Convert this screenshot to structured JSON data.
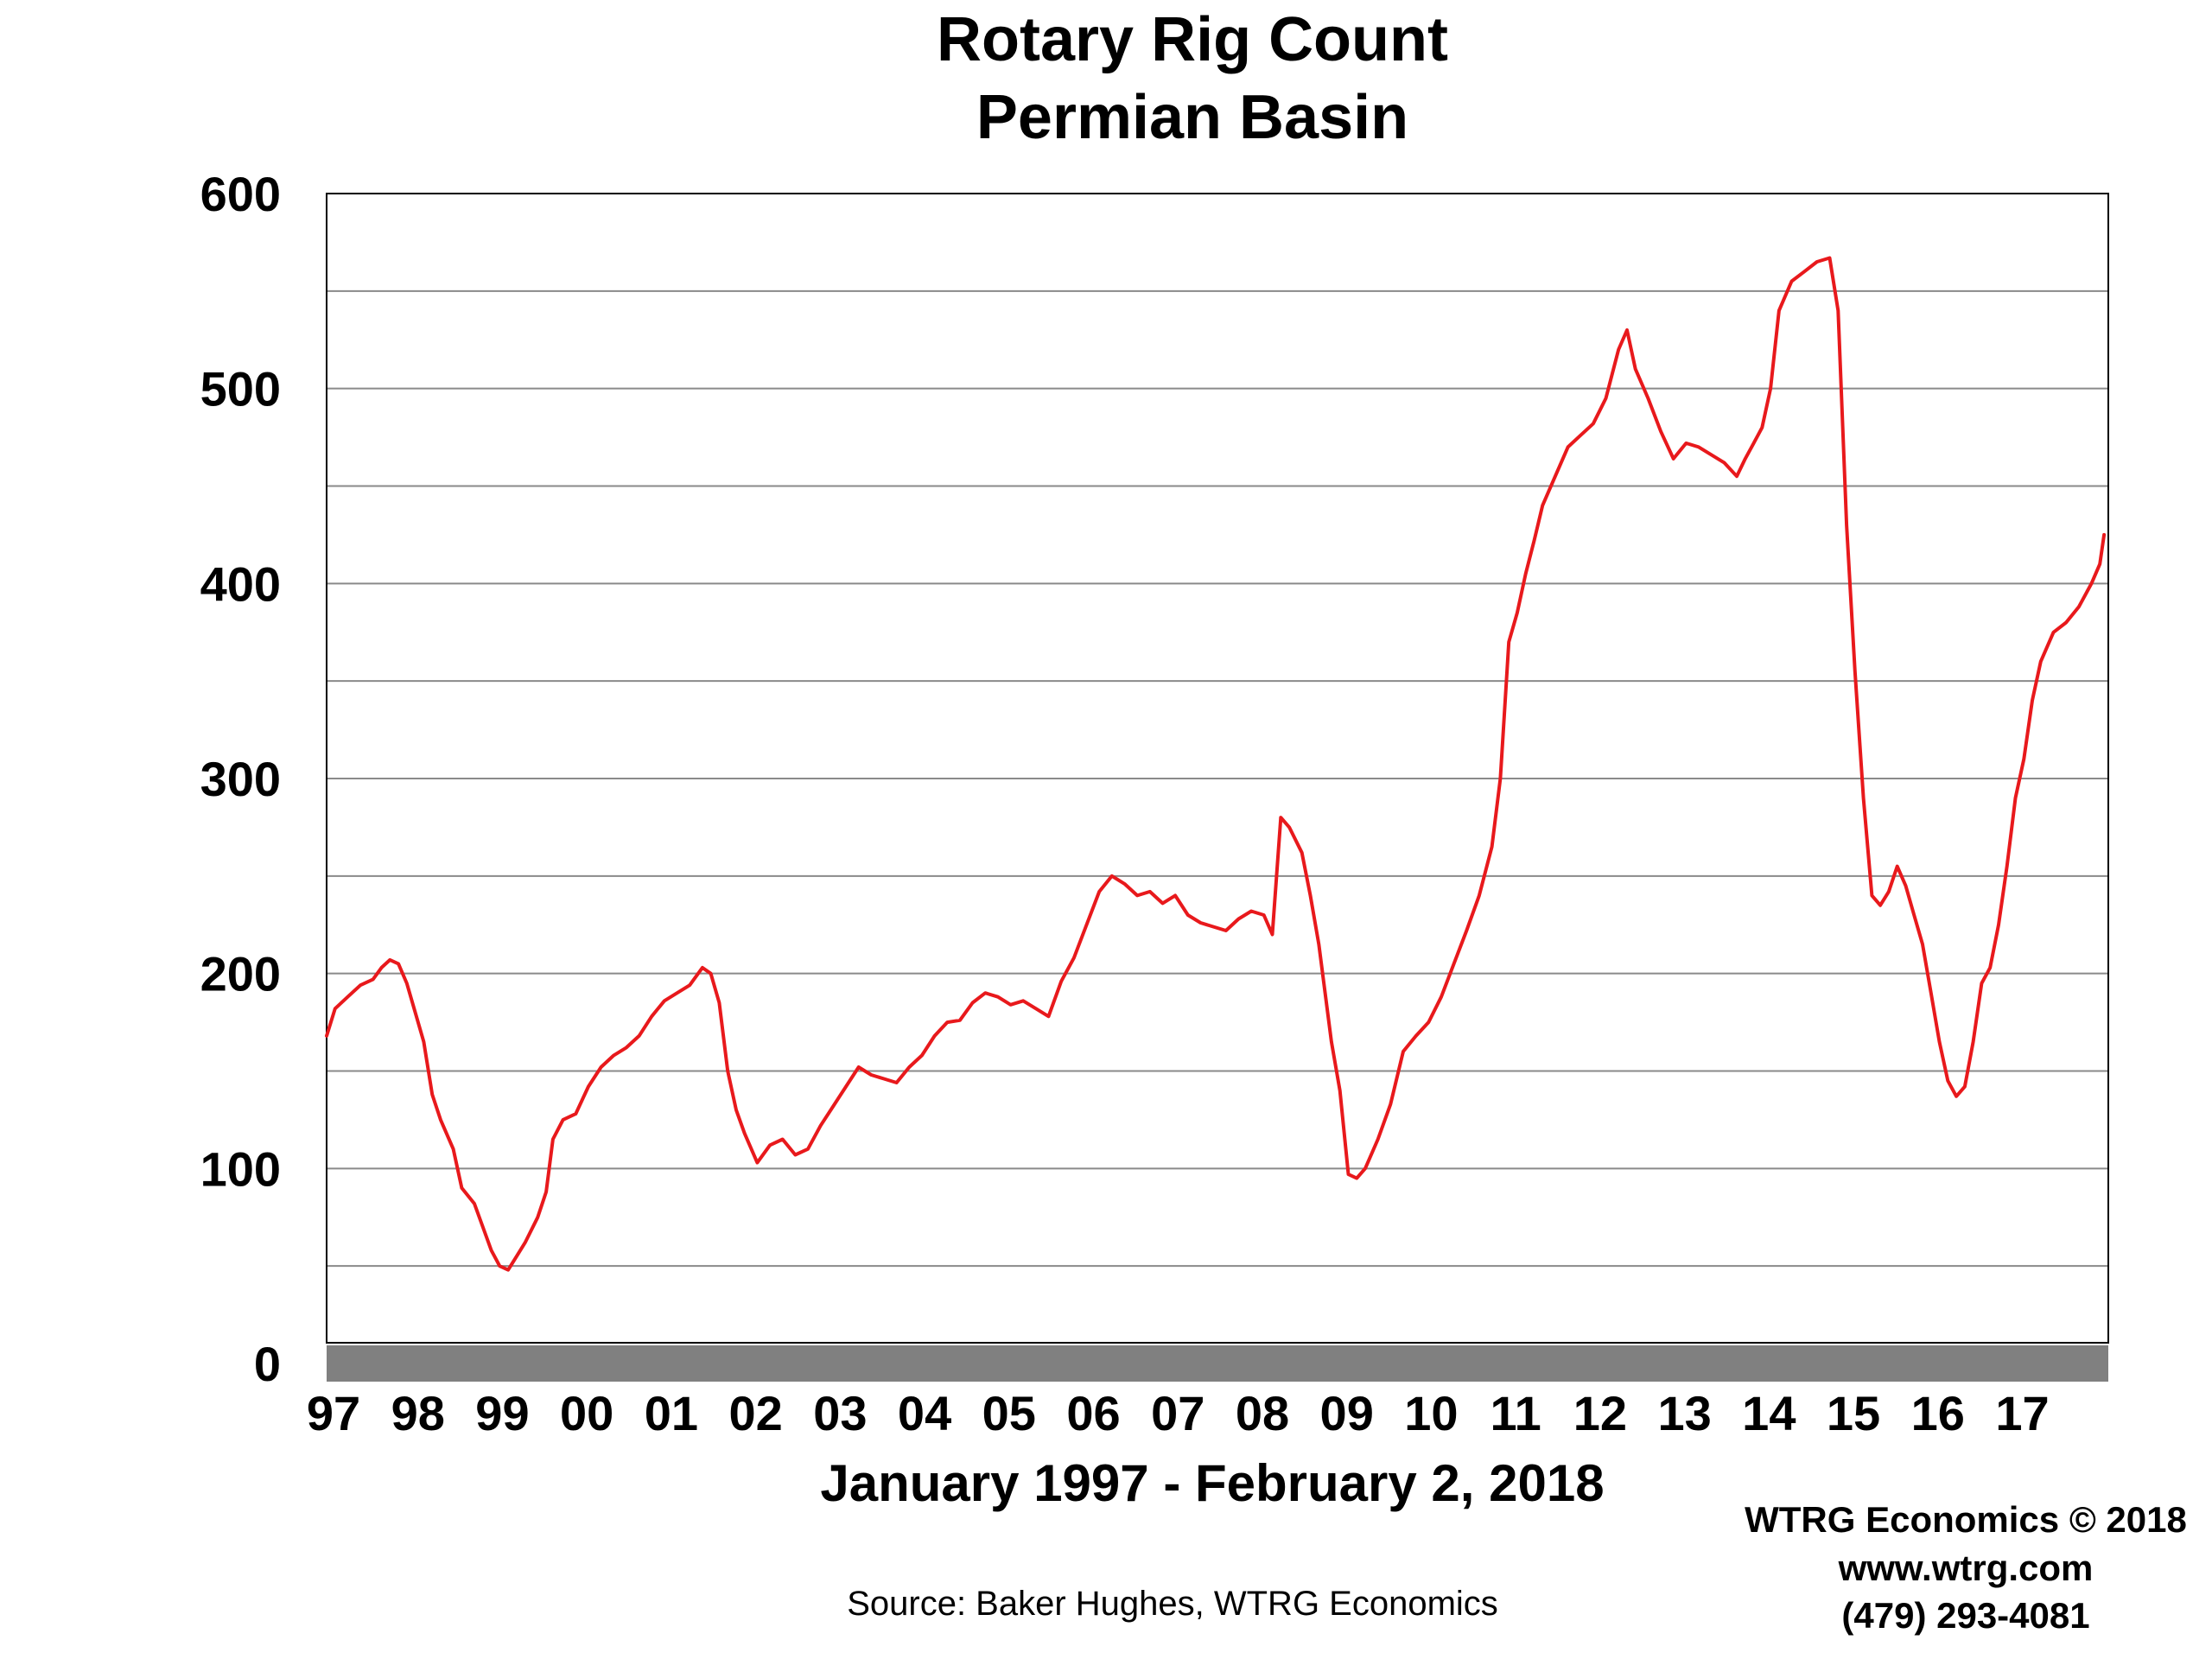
{
  "chart_data": {
    "type": "line",
    "title": "Rotary Rig Count",
    "subtitle": "Permian Basin",
    "xlabel": "January 1997 - February 2, 2018",
    "ylabel": "",
    "ylim": [
      0,
      600
    ],
    "xlim": [
      1997.0,
      2018.1
    ],
    "grid": true,
    "y_ticks": [
      {
        "value": 0,
        "label": "0"
      },
      {
        "value": 100,
        "label": "100"
      },
      {
        "value": 200,
        "label": "200"
      },
      {
        "value": 300,
        "label": "300"
      },
      {
        "value": 400,
        "label": "400"
      },
      {
        "value": 500,
        "label": "500"
      },
      {
        "value": 600,
        "label": "600"
      }
    ],
    "y_minor_gridlines": [
      50,
      150,
      250,
      350,
      450,
      550
    ],
    "x_ticks": [
      {
        "value": 1997,
        "label": "97"
      },
      {
        "value": 1998,
        "label": "98"
      },
      {
        "value": 1999,
        "label": "99"
      },
      {
        "value": 2000,
        "label": "00"
      },
      {
        "value": 2001,
        "label": "01"
      },
      {
        "value": 2002,
        "label": "02"
      },
      {
        "value": 2003,
        "label": "03"
      },
      {
        "value": 2004,
        "label": "04"
      },
      {
        "value": 2005,
        "label": "05"
      },
      {
        "value": 2006,
        "label": "06"
      },
      {
        "value": 2007,
        "label": "07"
      },
      {
        "value": 2008,
        "label": "08"
      },
      {
        "value": 2009,
        "label": "09"
      },
      {
        "value": 2010,
        "label": "10"
      },
      {
        "value": 2011,
        "label": "11"
      },
      {
        "value": 2012,
        "label": "12"
      },
      {
        "value": 2013,
        "label": "13"
      },
      {
        "value": 2014,
        "label": "14"
      },
      {
        "value": 2015,
        "label": "15"
      },
      {
        "value": 2016,
        "label": "16"
      },
      {
        "value": 2017,
        "label": "17"
      }
    ],
    "series": [
      {
        "color": "#e8191c",
        "points": [
          [
            1997.0,
            168
          ],
          [
            1997.1,
            182
          ],
          [
            1997.25,
            188
          ],
          [
            1997.4,
            194
          ],
          [
            1997.55,
            197
          ],
          [
            1997.65,
            203
          ],
          [
            1997.75,
            207
          ],
          [
            1997.85,
            205
          ],
          [
            1997.95,
            195
          ],
          [
            1998.05,
            180
          ],
          [
            1998.15,
            165
          ],
          [
            1998.25,
            138
          ],
          [
            1998.35,
            125
          ],
          [
            1998.5,
            110
          ],
          [
            1998.6,
            90
          ],
          [
            1998.75,
            82
          ],
          [
            1998.85,
            70
          ],
          [
            1998.95,
            58
          ],
          [
            1999.05,
            50
          ],
          [
            1999.15,
            48
          ],
          [
            1999.25,
            55
          ],
          [
            1999.35,
            62
          ],
          [
            1999.5,
            75
          ],
          [
            1999.6,
            88
          ],
          [
            1999.68,
            115
          ],
          [
            1999.8,
            125
          ],
          [
            1999.95,
            128
          ],
          [
            2000.1,
            142
          ],
          [
            2000.25,
            152
          ],
          [
            2000.4,
            158
          ],
          [
            2000.55,
            162
          ],
          [
            2000.7,
            168
          ],
          [
            2000.85,
            178
          ],
          [
            2001.0,
            186
          ],
          [
            2001.15,
            190
          ],
          [
            2001.3,
            194
          ],
          [
            2001.45,
            203
          ],
          [
            2001.55,
            200
          ],
          [
            2001.65,
            185
          ],
          [
            2001.75,
            150
          ],
          [
            2001.85,
            130
          ],
          [
            2001.95,
            118
          ],
          [
            2002.1,
            103
          ],
          [
            2002.25,
            112
          ],
          [
            2002.4,
            115
          ],
          [
            2002.55,
            107
          ],
          [
            2002.7,
            110
          ],
          [
            2002.85,
            122
          ],
          [
            2003.0,
            132
          ],
          [
            2003.15,
            142
          ],
          [
            2003.3,
            152
          ],
          [
            2003.45,
            148
          ],
          [
            2003.6,
            146
          ],
          [
            2003.75,
            144
          ],
          [
            2003.9,
            152
          ],
          [
            2004.05,
            158
          ],
          [
            2004.2,
            168
          ],
          [
            2004.35,
            175
          ],
          [
            2004.5,
            176
          ],
          [
            2004.65,
            185
          ],
          [
            2004.8,
            190
          ],
          [
            2004.95,
            188
          ],
          [
            2005.1,
            184
          ],
          [
            2005.25,
            186
          ],
          [
            2005.4,
            182
          ],
          [
            2005.55,
            178
          ],
          [
            2005.7,
            196
          ],
          [
            2005.85,
            208
          ],
          [
            2006.0,
            225
          ],
          [
            2006.15,
            242
          ],
          [
            2006.3,
            250
          ],
          [
            2006.45,
            246
          ],
          [
            2006.6,
            240
          ],
          [
            2006.75,
            242
          ],
          [
            2006.9,
            236
          ],
          [
            2007.05,
            240
          ],
          [
            2007.2,
            230
          ],
          [
            2007.35,
            226
          ],
          [
            2007.5,
            224
          ],
          [
            2007.65,
            222
          ],
          [
            2007.8,
            228
          ],
          [
            2007.95,
            232
          ],
          [
            2008.1,
            230
          ],
          [
            2008.2,
            220
          ],
          [
            2008.3,
            280
          ],
          [
            2008.4,
            275
          ],
          [
            2008.55,
            262
          ],
          [
            2008.65,
            240
          ],
          [
            2008.75,
            215
          ],
          [
            2008.9,
            165
          ],
          [
            2009.0,
            140
          ],
          [
            2009.1,
            97
          ],
          [
            2009.2,
            95
          ],
          [
            2009.3,
            100
          ],
          [
            2009.45,
            115
          ],
          [
            2009.6,
            133
          ],
          [
            2009.75,
            160
          ],
          [
            2009.9,
            168
          ],
          [
            2010.05,
            175
          ],
          [
            2010.2,
            188
          ],
          [
            2010.35,
            205
          ],
          [
            2010.5,
            222
          ],
          [
            2010.65,
            240
          ],
          [
            2010.8,
            265
          ],
          [
            2010.9,
            300
          ],
          [
            2011.0,
            370
          ],
          [
            2011.1,
            385
          ],
          [
            2011.2,
            405
          ],
          [
            2011.3,
            422
          ],
          [
            2011.4,
            440
          ],
          [
            2011.55,
            455
          ],
          [
            2011.7,
            470
          ],
          [
            2011.85,
            476
          ],
          [
            2012.0,
            482
          ],
          [
            2012.15,
            495
          ],
          [
            2012.3,
            520
          ],
          [
            2012.4,
            530
          ],
          [
            2012.5,
            510
          ],
          [
            2012.65,
            495
          ],
          [
            2012.8,
            478
          ],
          [
            2012.95,
            464
          ],
          [
            2013.1,
            472
          ],
          [
            2013.25,
            470
          ],
          [
            2013.4,
            466
          ],
          [
            2013.55,
            462
          ],
          [
            2013.7,
            455
          ],
          [
            2013.8,
            464
          ],
          [
            2013.9,
            472
          ],
          [
            2014.0,
            480
          ],
          [
            2014.1,
            500
          ],
          [
            2014.2,
            540
          ],
          [
            2014.35,
            555
          ],
          [
            2014.5,
            560
          ],
          [
            2014.65,
            565
          ],
          [
            2014.8,
            567
          ],
          [
            2014.9,
            540
          ],
          [
            2015.0,
            430
          ],
          [
            2015.1,
            355
          ],
          [
            2015.2,
            290
          ],
          [
            2015.3,
            240
          ],
          [
            2015.4,
            235
          ],
          [
            2015.5,
            242
          ],
          [
            2015.6,
            255
          ],
          [
            2015.7,
            245
          ],
          [
            2015.8,
            230
          ],
          [
            2015.9,
            215
          ],
          [
            2016.0,
            190
          ],
          [
            2016.1,
            165
          ],
          [
            2016.2,
            145
          ],
          [
            2016.3,
            137
          ],
          [
            2016.4,
            142
          ],
          [
            2016.5,
            165
          ],
          [
            2016.6,
            195
          ],
          [
            2016.7,
            203
          ],
          [
            2016.8,
            225
          ],
          [
            2016.9,
            255
          ],
          [
            2017.0,
            290
          ],
          [
            2017.1,
            310
          ],
          [
            2017.2,
            340
          ],
          [
            2017.3,
            360
          ],
          [
            2017.45,
            375
          ],
          [
            2017.6,
            380
          ],
          [
            2017.75,
            388
          ],
          [
            2017.9,
            400
          ],
          [
            2018.0,
            410
          ],
          [
            2018.05,
            425
          ]
        ]
      }
    ]
  },
  "footer": {
    "brand": "WTRG Economics © 2018",
    "website": "www.wtrg.com",
    "phone": "(479) 293-4081",
    "source": "Source: Baker Hughes, WTRG Economics"
  },
  "colors": {
    "line": "#e8191c",
    "gridline": "#8a8a8a",
    "axis_band": "#808080",
    "plot_border": "#000000",
    "background": "#ffffff"
  }
}
